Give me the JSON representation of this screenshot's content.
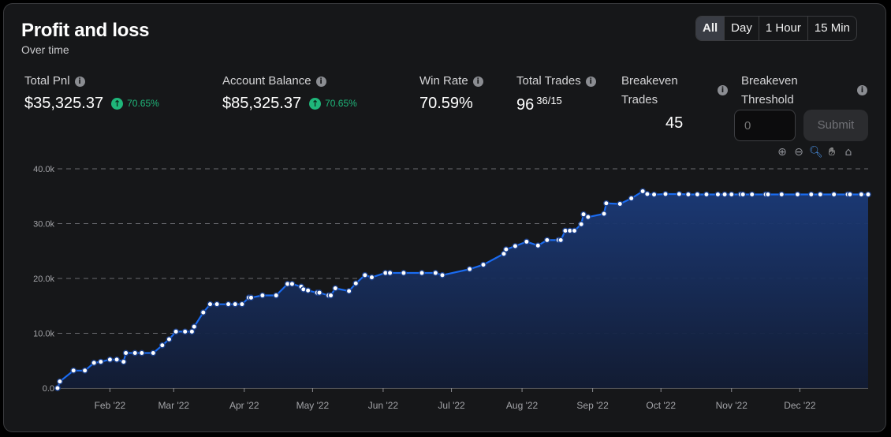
{
  "header": {
    "title": "Profit and loss",
    "subtitle": "Over time"
  },
  "tabs": [
    {
      "label": "All"
    },
    {
      "label": "Day"
    },
    {
      "label": "1 Hour"
    },
    {
      "label": "15 Min"
    }
  ],
  "active_tab": "All",
  "metrics": {
    "total_pnl": {
      "label": "Total Pnl",
      "value": "$35,325.37",
      "change": "70.65%"
    },
    "account_balance": {
      "label": "Account Balance",
      "value": "$85,325.37",
      "change": "70.65%"
    },
    "win_rate": {
      "label": "Win Rate",
      "value": "70.59%"
    },
    "total_trades": {
      "label": "Total Trades",
      "value": "96",
      "split": "36/15"
    },
    "breakeven_trades": {
      "label_line1": "Breakeven",
      "label_line2": "Trades",
      "value": "45"
    },
    "breakeven_threshold": {
      "label_line1": "Breakeven",
      "label_line2": "Threshold",
      "placeholder": "0",
      "submit_label": "Submit"
    }
  },
  "icons": {
    "info": "info-icon",
    "up": "arrow-up-icon",
    "zoom_in": "zoom-in-icon",
    "zoom_out": "zoom-out-icon",
    "zoom_select": "zoom-select-icon",
    "pan": "pan-hand-icon",
    "reset": "home-icon"
  },
  "colors": {
    "line": "#1a6bf0",
    "area_top": "#1b3a78",
    "area_bottom": "#121c34",
    "positive": "#1fb67a",
    "grid": "#6a6b70"
  },
  "chart_data": {
    "type": "area",
    "title": "",
    "xlabel": "",
    "ylabel": "",
    "x_tick_labels": [
      "Feb '22",
      "Mar '22",
      "Apr '22",
      "May '22",
      "Jun '22",
      "Jul '22",
      "Aug '22",
      "Sep '22",
      "Oct '22",
      "Nov '22",
      "Dec '22"
    ],
    "y_tick_labels": [
      "0.0",
      "10.0k",
      "20.0k",
      "30.0k",
      "40.0k"
    ],
    "ylim": [
      0,
      40000
    ],
    "xlim": [
      "2022-01-09",
      "2022-12-31"
    ],
    "grid": "horizontal dashed",
    "series": [
      {
        "x": [
          "2022-01-09",
          "2022-01-10",
          "2022-01-16",
          "2022-01-21",
          "2022-01-25",
          "2022-01-28",
          "2022-02-01",
          "2022-02-04",
          "2022-02-07",
          "2022-02-08",
          "2022-02-12",
          "2022-02-15",
          "2022-02-20",
          "2022-02-24",
          "2022-02-27",
          "2022-03-02",
          "2022-03-06",
          "2022-03-09",
          "2022-03-10",
          "2022-03-14",
          "2022-03-17",
          "2022-03-20",
          "2022-03-25",
          "2022-03-28",
          "2022-03-31",
          "2022-04-03",
          "2022-04-04",
          "2022-04-09",
          "2022-04-15",
          "2022-04-20",
          "2022-04-22",
          "2022-04-26",
          "2022-04-27",
          "2022-04-29",
          "2022-05-03",
          "2022-05-04",
          "2022-05-08",
          "2022-05-09",
          "2022-05-11",
          "2022-05-17",
          "2022-05-20",
          "2022-05-24",
          "2022-05-27",
          "2022-06-02",
          "2022-06-04",
          "2022-06-10",
          "2022-06-18",
          "2022-06-24",
          "2022-06-27",
          "2022-07-09",
          "2022-07-15",
          "2022-07-24",
          "2022-07-25",
          "2022-07-29",
          "2022-08-03",
          "2022-08-08",
          "2022-08-12",
          "2022-08-17",
          "2022-08-18",
          "2022-08-20",
          "2022-08-22",
          "2022-08-24",
          "2022-08-27",
          "2022-08-28",
          "2022-08-30",
          "2022-09-06",
          "2022-09-07",
          "2022-09-13",
          "2022-09-18",
          "2022-09-23",
          "2022-09-25",
          "2022-09-28",
          "2022-10-03",
          "2022-10-09",
          "2022-10-13",
          "2022-10-17",
          "2022-10-21",
          "2022-10-26",
          "2022-10-29",
          "2022-11-01",
          "2022-11-05",
          "2022-11-06",
          "2022-11-10",
          "2022-11-16",
          "2022-11-17",
          "2022-11-23",
          "2022-11-30",
          "2022-12-06",
          "2022-12-10",
          "2022-12-16",
          "2022-12-22",
          "2022-12-23",
          "2022-12-28",
          "2022-12-31"
        ],
        "y": [
          0,
          1200,
          3200,
          3200,
          4600,
          4800,
          5200,
          5200,
          4800,
          6400,
          6400,
          6400,
          6400,
          7800,
          8900,
          10300,
          10300,
          10300,
          11200,
          13800,
          15300,
          15300,
          15300,
          15300,
          15300,
          16500,
          16500,
          16900,
          16900,
          19000,
          19000,
          18500,
          18000,
          17800,
          17400,
          17400,
          16900,
          16900,
          18200,
          17700,
          19100,
          20600,
          20200,
          21000,
          21000,
          21000,
          21000,
          21000,
          20600,
          21700,
          22500,
          24500,
          25300,
          25900,
          26700,
          26000,
          27000,
          27000,
          27000,
          28700,
          28700,
          28700,
          29900,
          31700,
          31200,
          31800,
          33700,
          33600,
          34600,
          35900,
          35400,
          35300,
          35400,
          35400,
          35325.37,
          35325.37,
          35325.37,
          35325.37,
          35325.37,
          35325.37,
          35325.37,
          35325.37,
          35325.37,
          35325.37,
          35325.37,
          35325.37,
          35325.37,
          35325.37,
          35325.37,
          35325.37,
          35325.37,
          35325.37,
          35325.37,
          35325.37
        ]
      }
    ]
  }
}
